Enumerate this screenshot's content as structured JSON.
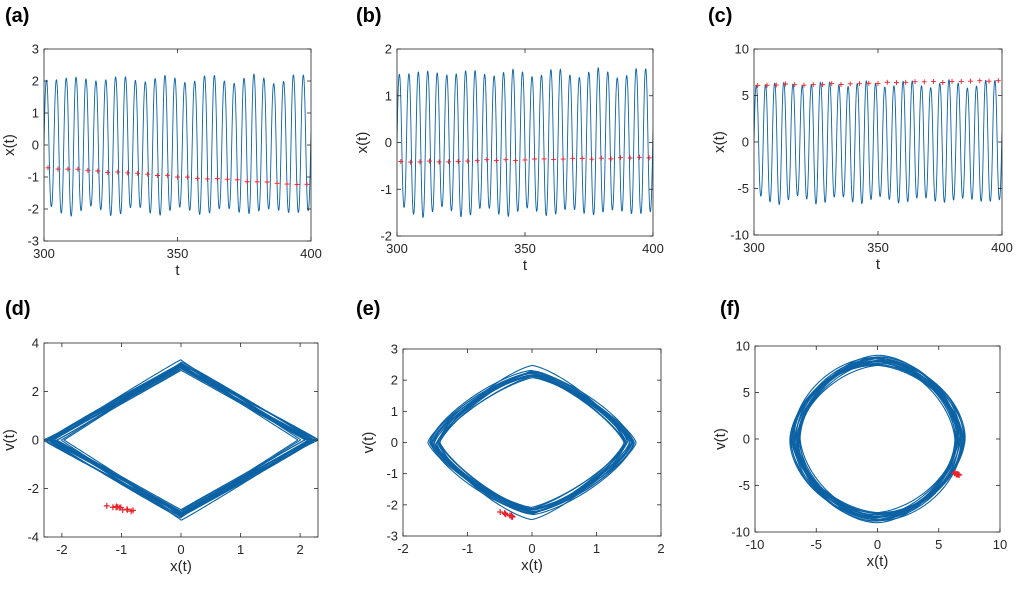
{
  "colors": {
    "trace": "#0b62a4",
    "marker": "#e8242b",
    "axis": "#262626"
  },
  "chart_data": [
    {
      "panel": "(a)",
      "type": "line",
      "xlabel": "t",
      "ylabel": "x(t)",
      "xlim": [
        300,
        400
      ],
      "ylim": [
        -3,
        3
      ],
      "xticks": [
        "300",
        "350",
        "400"
      ],
      "yticks": [
        "3",
        "2",
        "1",
        "0",
        "-1",
        "-2",
        "-3"
      ],
      "series": [
        {
          "name": "x(t)",
          "style": "signal",
          "amplitude": 2.15,
          "period": 3.7,
          "offset": 0.0
        },
        {
          "name": "markers",
          "style": "markers",
          "start": -0.72,
          "end": -1.25,
          "count": 27
        }
      ]
    },
    {
      "panel": "(b)",
      "type": "line",
      "xlabel": "t",
      "ylabel": "x(t)",
      "xlim": [
        300,
        400
      ],
      "ylim": [
        -2,
        2
      ],
      "xticks": [
        "300",
        "350",
        "400"
      ],
      "yticks": [
        "2",
        "1",
        "0",
        "-1",
        "-2"
      ],
      "series": [
        {
          "name": "x(t)",
          "style": "signal",
          "amplitude": 1.55,
          "period": 3.7,
          "offset": 0.0
        },
        {
          "name": "markers",
          "style": "markers",
          "start": -0.42,
          "end": -0.32,
          "count": 27
        }
      ]
    },
    {
      "panel": "(c)",
      "type": "line",
      "xlabel": "t",
      "ylabel": "x(t)",
      "xlim": [
        300,
        400
      ],
      "ylim": [
        -10,
        10
      ],
      "xticks": [
        "300",
        "350",
        "400"
      ],
      "yticks": [
        "10",
        "5",
        "0",
        "-5",
        "-10"
      ],
      "series": [
        {
          "name": "x(t)",
          "style": "signal",
          "amplitude": 6.5,
          "period": 3.7,
          "offset": 0.0
        },
        {
          "name": "markers",
          "style": "markers",
          "start": 6.1,
          "end": 6.6,
          "count": 27
        }
      ]
    },
    {
      "panel": "(d)",
      "type": "scatter",
      "xlabel": "x(t)",
      "ylabel": "v(t)",
      "xlim": [
        -2.3,
        2.3
      ],
      "ylim": [
        -4,
        4
      ],
      "xticks": [
        "-2",
        "-1",
        "0",
        "1",
        "2"
      ],
      "yticks": [
        "4",
        "2",
        "0",
        "-2",
        "-4"
      ],
      "series": [
        {
          "name": "orbit",
          "style": "orbit",
          "rx": 2.15,
          "ry": 3.05,
          "shape": 0.0,
          "spread": 0.06,
          "loops": 18
        },
        {
          "name": "markers",
          "style": "cluster",
          "x_range": [
            -1.25,
            -0.75
          ],
          "y_range": [
            -2.65,
            -3.0
          ],
          "count": 12
        }
      ]
    },
    {
      "panel": "(e)",
      "type": "scatter",
      "xlabel": "x(t)",
      "ylabel": "v(t)",
      "xlim": [
        -2,
        2
      ],
      "ylim": [
        -3,
        3
      ],
      "xticks": [
        "-2",
        "-1",
        "0",
        "1",
        "2"
      ],
      "yticks": [
        "3",
        "2",
        "1",
        "0",
        "-1",
        "-2",
        "-3"
      ],
      "series": [
        {
          "name": "orbit",
          "style": "orbit",
          "rx": 1.5,
          "ry": 2.25,
          "shape": 0.25,
          "spread": 0.07,
          "loops": 18
        },
        {
          "name": "markers",
          "style": "cluster",
          "x_range": [
            -0.5,
            -0.3
          ],
          "y_range": [
            -2.2,
            -2.4
          ],
          "count": 10
        }
      ]
    },
    {
      "panel": "(f)",
      "type": "scatter",
      "xlabel": "x(t)",
      "ylabel": "v(t)",
      "xlim": [
        -10,
        10
      ],
      "ylim": [
        -10,
        10
      ],
      "xticks": [
        "-10",
        "-5",
        "0",
        "5",
        "10"
      ],
      "yticks": [
        "10",
        "5",
        "0",
        "-5",
        "-10"
      ],
      "series": [
        {
          "name": "orbit",
          "style": "orbit",
          "rx": 6.7,
          "ry": 8.4,
          "shape": 0.6,
          "spread": 0.05,
          "loops": 20
        },
        {
          "name": "markers",
          "style": "cluster",
          "x_range": [
            6.2,
            6.7
          ],
          "y_range": [
            -3.5,
            -4.0
          ],
          "count": 10
        }
      ]
    }
  ]
}
